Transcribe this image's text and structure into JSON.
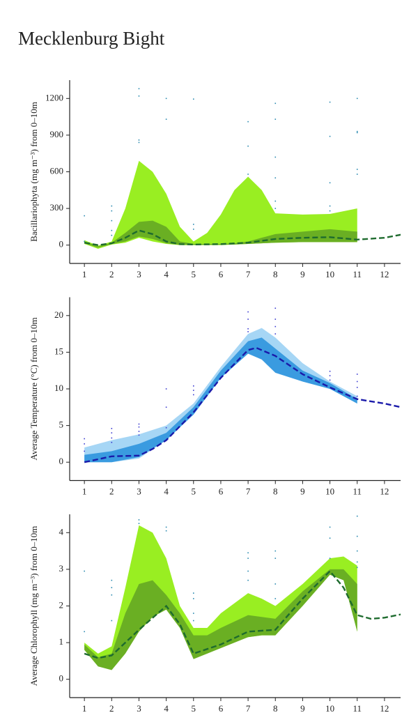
{
  "title": "Mecklenburg Bight",
  "chart_data": [
    {
      "type": "line",
      "ylabel": "Bacillariophyta (mg m⁻³) from 0–10m",
      "xlim": [
        0.46,
        12.59
      ],
      "xticks": [
        1,
        2,
        3,
        4,
        5,
        6,
        7,
        8,
        9,
        10,
        11,
        12
      ],
      "ylim": [
        -150,
        1350
      ],
      "yticks": [
        0,
        300,
        600,
        900,
        1200
      ],
      "bands": [
        {
          "color": "#99ee22",
          "x": [
            1,
            1.5,
            2,
            2.5,
            3,
            3.5,
            4,
            4.5,
            5,
            5.5,
            6,
            6.5,
            7,
            7.5,
            8,
            9,
            10,
            11
          ],
          "upper": [
            40,
            -5,
            30,
            300,
            690,
            600,
            420,
            150,
            30,
            100,
            250,
            450,
            560,
            450,
            260,
            250,
            255,
            300
          ],
          "lower": [
            10,
            -30,
            5,
            20,
            60,
            30,
            10,
            0,
            0,
            0,
            0,
            5,
            10,
            15,
            20,
            25,
            25,
            25
          ]
        },
        {
          "color": "#6aaf23",
          "x": [
            1,
            1.5,
            2,
            2.5,
            3,
            3.5,
            4,
            4.5,
            5,
            5.5,
            6,
            6.5,
            7,
            7.5,
            8,
            9,
            10,
            11
          ],
          "upper": [
            30,
            -10,
            20,
            100,
            190,
            200,
            150,
            30,
            10,
            10,
            10,
            15,
            30,
            60,
            90,
            110,
            130,
            110
          ],
          "lower": [
            15,
            -20,
            8,
            30,
            70,
            50,
            15,
            2,
            2,
            2,
            3,
            5,
            10,
            15,
            20,
            25,
            25,
            25
          ]
        }
      ],
      "series": [
        {
          "color": "#1e6b2e",
          "x": [
            1,
            1.5,
            2,
            2.5,
            3,
            3.5,
            4,
            4.5,
            5,
            6,
            7,
            7.5,
            8,
            9,
            10,
            11,
            12,
            12.6
          ],
          "values": [
            20,
            0,
            15,
            60,
            120,
            90,
            30,
            8,
            5,
            8,
            20,
            35,
            50,
            60,
            65,
            45,
            60,
            85
          ]
        }
      ],
      "points": {
        "color": "#2a8ab0",
        "x": [
          1,
          1,
          2,
          2,
          2,
          2,
          2,
          3,
          3,
          3,
          3,
          4,
          4,
          5,
          5,
          5,
          7,
          7,
          7,
          8,
          8,
          8,
          8,
          8,
          8,
          10,
          10,
          10,
          10,
          10,
          11,
          11,
          11,
          11,
          11
        ],
        "values": [
          240,
          30,
          320,
          280,
          200,
          120,
          80,
          1280,
          1220,
          860,
          840,
          1200,
          1030,
          1195,
          170,
          130,
          1010,
          810,
          580,
          1160,
          1030,
          720,
          550,
          360,
          300,
          1170,
          890,
          510,
          320,
          280,
          1200,
          930,
          920,
          620,
          580
        ]
      }
    },
    {
      "type": "line",
      "ylabel": "Average Temperature (°C) from 0–10m",
      "xlim": [
        0.46,
        12.59
      ],
      "xticks": [
        1,
        2,
        3,
        4,
        5,
        6,
        7,
        8,
        9,
        10,
        11,
        12
      ],
      "ylim": [
        -2.5,
        22.5
      ],
      "yticks": [
        0,
        5,
        10,
        15,
        20
      ],
      "bands": [
        {
          "color": "#a6d6f5",
          "x": [
            1,
            2,
            3,
            4,
            5,
            6,
            7,
            7.5,
            8,
            9,
            10,
            11
          ],
          "upper": [
            2,
            3,
            3.8,
            5,
            8,
            13,
            17.5,
            18.3,
            17,
            13.5,
            11,
            9
          ],
          "lower": [
            0,
            0,
            0.5,
            3,
            6.5,
            11.5,
            15,
            14.5,
            12.5,
            11,
            10,
            8
          ]
        },
        {
          "color": "#3a9be0",
          "x": [
            1,
            2,
            3,
            4,
            5,
            6,
            7,
            7.5,
            8,
            9,
            10,
            11
          ],
          "upper": [
            1,
            1.5,
            2.5,
            4,
            7.5,
            12.5,
            16.5,
            17,
            15.5,
            12.5,
            10.8,
            8.6
          ],
          "lower": [
            0,
            0,
            0.7,
            3,
            6.5,
            11.5,
            14.8,
            14,
            12.2,
            11,
            10,
            8
          ]
        }
      ],
      "series": [
        {
          "color": "#1a1aaa",
          "x": [
            1,
            2,
            3,
            3.5,
            4,
            5,
            6,
            7,
            7.3,
            8,
            9,
            10,
            11,
            12,
            12.6
          ],
          "values": [
            0,
            0.8,
            0.9,
            1.8,
            3,
            6.8,
            11.5,
            15.3,
            15.6,
            14.5,
            12,
            10.2,
            8.6,
            8,
            7.5
          ]
        }
      ],
      "points": {
        "color": "#3b3bd0",
        "x": [
          1,
          1,
          1,
          2,
          2,
          2,
          2,
          3,
          3,
          3,
          3,
          4,
          4,
          4,
          5,
          5,
          5,
          7,
          7,
          7,
          7,
          8,
          8,
          8,
          8,
          10,
          10,
          10,
          11,
          11,
          11,
          11
        ],
        "values": [
          3.2,
          2.5,
          1.5,
          4.6,
          4,
          3.3,
          2.7,
          5.2,
          4.8,
          4.2,
          3.7,
          10,
          7.5,
          4.7,
          10.4,
          9.8,
          9.2,
          20.5,
          19.5,
          18.2,
          17.8,
          21,
          19.5,
          18.5,
          17.5,
          12.4,
          11.8,
          11.2,
          12,
          11,
          10.2,
          9
        ]
      }
    },
    {
      "type": "line",
      "ylabel": "Average Chlorophyll (mg m⁻³) from 0–10m",
      "xlim": [
        0.46,
        12.59
      ],
      "xticks": [
        1,
        2,
        3,
        4,
        5,
        6,
        7,
        8,
        9,
        10,
        11,
        12
      ],
      "ylim": [
        -0.5,
        4.5
      ],
      "yticks": [
        0,
        1,
        2,
        3,
        4
      ],
      "bands": [
        {
          "color": "#99ee22",
          "x": [
            1,
            1.5,
            2,
            2.5,
            3,
            3.5,
            4,
            4.5,
            5,
            5.5,
            6,
            7,
            7.5,
            8,
            9,
            10,
            10.5,
            11
          ],
          "upper": [
            1,
            0.7,
            0.9,
            2.5,
            4.2,
            4,
            3.3,
            2,
            1.4,
            1.4,
            1.8,
            2.35,
            2.2,
            2,
            2.6,
            3.3,
            3.35,
            3.1
          ],
          "lower": [
            0.8,
            0.4,
            0.3,
            0.8,
            1.4,
            1.8,
            2,
            1.5,
            0.6,
            0.7,
            0.9,
            1.15,
            1.2,
            1.2,
            2.1,
            2.9,
            2.8,
            1.3
          ]
        },
        {
          "color": "#6aaf23",
          "x": [
            1,
            1.5,
            2,
            2.5,
            3,
            3.5,
            4,
            4.5,
            5,
            5.5,
            6,
            7,
            7.5,
            8,
            9,
            10,
            10.5,
            11
          ],
          "upper": [
            0.95,
            0.6,
            0.7,
            1.8,
            2.6,
            2.7,
            2.3,
            1.8,
            1.2,
            1.2,
            1.4,
            1.75,
            1.7,
            1.65,
            2.4,
            3,
            3,
            2.6
          ],
          "lower": [
            0.8,
            0.35,
            0.25,
            0.7,
            1.3,
            1.7,
            1.9,
            1.4,
            0.55,
            0.7,
            0.85,
            1.15,
            1.2,
            1.2,
            2,
            2.85,
            2.7,
            1.3
          ]
        }
      ],
      "series": [
        {
          "color": "#1e6b2e",
          "x": [
            1,
            1.5,
            2,
            3,
            4,
            4.5,
            5,
            6,
            7,
            8,
            9,
            10,
            10.5,
            11,
            11.5,
            12,
            12.6
          ],
          "values": [
            0.7,
            0.58,
            0.65,
            1.35,
            2,
            1.5,
            0.7,
            0.95,
            1.3,
            1.35,
            2.2,
            2.95,
            2.5,
            1.75,
            1.65,
            1.68,
            1.77
          ]
        }
      ],
      "points": {
        "color": "#2a8ab0",
        "x": [
          1,
          1,
          2,
          2,
          2,
          2,
          3,
          3,
          4,
          4,
          5,
          5,
          5,
          5,
          7,
          7,
          7,
          7,
          8,
          8,
          8,
          8,
          10,
          10,
          10,
          11,
          11,
          11,
          11,
          11
        ],
        "values": [
          2.95,
          1.3,
          2.7,
          2.5,
          2.3,
          1.6,
          4.35,
          4.25,
          4.15,
          4.05,
          2.35,
          2.2,
          1.8,
          1.6,
          3.45,
          3.3,
          2.95,
          2.7,
          3.5,
          3.3,
          2.6,
          2.2,
          4.15,
          3.85,
          3.3,
          4.45,
          3.9,
          3.5,
          3.2,
          3.05
        ]
      }
    }
  ]
}
